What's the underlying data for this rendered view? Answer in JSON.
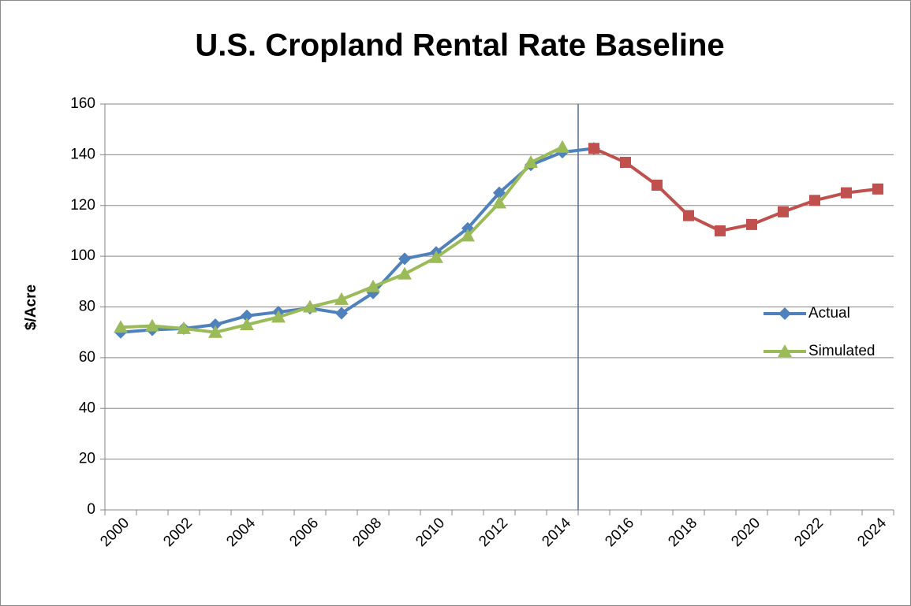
{
  "chart_data": {
    "type": "line",
    "title": "U.S. Cropland Rental Rate Baseline",
    "y_label": "$/Acre",
    "categories": [
      "2000",
      null,
      "2002",
      null,
      "2004",
      null,
      "2006",
      null,
      "2008",
      null,
      "2010",
      null,
      "2012",
      null,
      "2014",
      null,
      "2016",
      null,
      "2018",
      null,
      "2020",
      null,
      "2022",
      null,
      "2024"
    ],
    "series": [
      {
        "name": "Actual",
        "color": "#4f81bd",
        "marker": "diamond",
        "values": [
          70,
          71,
          71.5,
          73,
          76.5,
          78,
          79.5,
          77.5,
          85.5,
          99,
          101.5,
          111,
          125,
          136,
          141,
          142.5,
          null,
          null,
          null,
          null,
          null,
          null,
          null,
          null,
          null
        ]
      },
      {
        "name": "Simulated",
        "color": "#9bbb59",
        "marker": "triangle",
        "values": [
          72,
          72.5,
          71.5,
          70,
          73,
          76,
          80,
          83,
          88,
          93,
          99.5,
          108,
          121,
          137,
          143,
          null,
          null,
          null,
          null,
          null,
          null,
          null,
          null,
          null,
          null
        ]
      },
      {
        "color": "#c0504d",
        "marker": "square",
        "values": [
          null,
          null,
          null,
          null,
          null,
          null,
          null,
          null,
          null,
          null,
          null,
          null,
          null,
          null,
          null,
          142.5,
          137,
          128,
          116,
          110,
          112.5,
          117.5,
          122,
          125,
          126.5
        ]
      }
    ],
    "ylim": [
      0,
      160
    ],
    "yticks": [
      0,
      20,
      40,
      60,
      80,
      100,
      120,
      140,
      160
    ],
    "grid": true,
    "legend": "right"
  }
}
